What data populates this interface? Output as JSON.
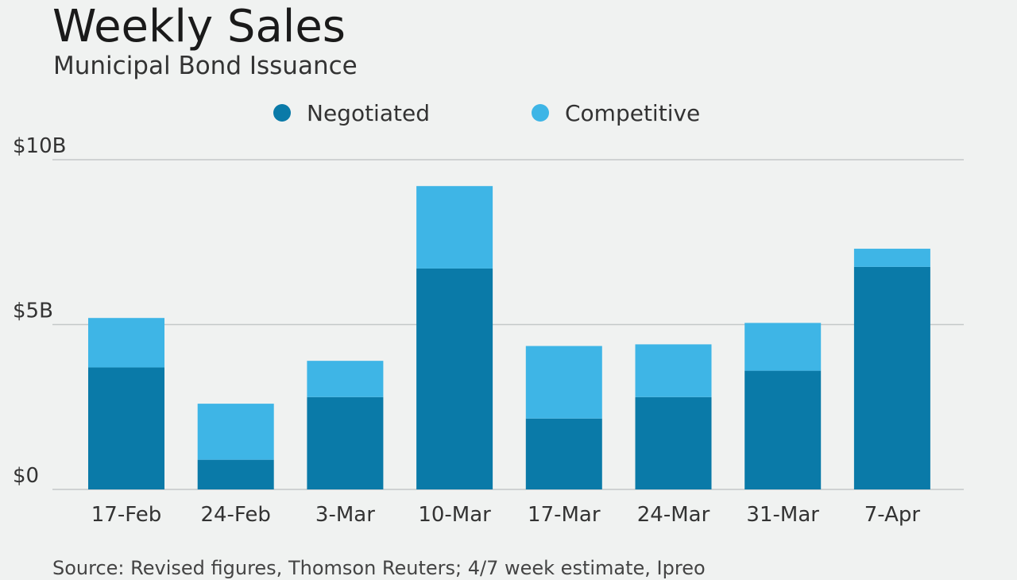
{
  "header": {
    "title": "Weekly Sales",
    "subtitle": "Municipal Bond Issuance"
  },
  "legend": [
    {
      "label": "Negotiated",
      "color": "#0a7aa8"
    },
    {
      "label": "Competitive",
      "color": "#3eb5e6"
    }
  ],
  "footer": {
    "source": "Source: Revised figures, Thomson Reuters; 4/7 week estimate, Ipreo"
  },
  "colors": {
    "negotiated": "#0a7aa8",
    "competitive": "#3eb5e6",
    "gridline": "#c4c8c9",
    "background": "#f0f2f1"
  },
  "chart_data": {
    "type": "bar",
    "stacked": true,
    "title": "Weekly Sales",
    "subtitle": "Municipal Bond Issuance",
    "xlabel": "",
    "ylabel": "",
    "categories": [
      "17-Feb",
      "24-Feb",
      "3-Mar",
      "10-Mar",
      "17-Mar",
      "24-Mar",
      "31-Mar",
      "7-Apr"
    ],
    "series": [
      {
        "name": "Negotiated",
        "values": [
          3.7,
          0.9,
          2.8,
          6.7,
          2.15,
          2.8,
          3.6,
          6.75
        ]
      },
      {
        "name": "Competitive",
        "values": [
          1.5,
          1.7,
          1.1,
          2.5,
          2.2,
          1.6,
          1.45,
          0.55
        ]
      }
    ],
    "ylim": [
      0,
      10
    ],
    "yticks": [
      {
        "value": 0,
        "label": "$0"
      },
      {
        "value": 5,
        "label": "$5B"
      },
      {
        "value": 10,
        "label": "$10B"
      }
    ],
    "grid": true,
    "legend_position": "top"
  }
}
